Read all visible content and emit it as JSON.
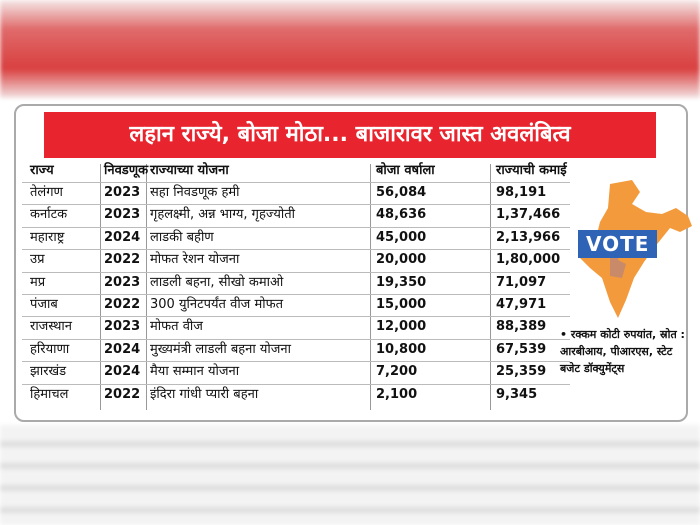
{
  "title": "लहान राज्ये, बोजा मोठा... बाजारावर जास्त अवलंबित्व",
  "table": {
    "header": [
      "राज्य",
      "निवडणूक",
      "राज्याच्या योजना",
      "बोजा वर्षाला",
      "राज्याची कमाई"
    ],
    "rows": [
      [
        "तेलंगण",
        "2023",
        "सहा निवडणूक हमी",
        "56,084",
        "98,191"
      ],
      [
        "कर्नाटक",
        "2023",
        "गृहलक्ष्मी, अन्न भाग्य, गृहज्योती",
        "48,636",
        "1,37,466"
      ],
      [
        "महाराष्ट्र",
        "2024",
        "लाडकी बहीण",
        "45,000",
        "2,13,966"
      ],
      [
        "उप्र",
        "2022",
        "मोफत रेशन योजना",
        "20,000",
        "1,80,000"
      ],
      [
        "मप्र",
        "2023",
        "लाडली बहना, सीखो कमाओ",
        "19,350",
        "71,097"
      ],
      [
        "पंजाब",
        "2022",
        "300 युनिटपर्यंत वीज मोफत",
        "15,000",
        "47,971"
      ],
      [
        "राजस्थान",
        "2023",
        "मोफत वीज",
        "12,000",
        "88,389"
      ],
      [
        "हरियाणा",
        "2024",
        "मुख्यमंत्री लाडली बहना योजना",
        "10,800",
        "67,539"
      ],
      [
        "झारखंड",
        "2024",
        "मैया सम्मान योजना",
        "7,200",
        "25,359"
      ],
      [
        "हिमाचल",
        "2022",
        "इंदिरा गांधी प्यारी बहना",
        "2,100",
        "9,345"
      ]
    ]
  },
  "map_label": "VOTE",
  "note": "• रक्कम कोटी रुपयांत, स्रोत : आरबीआय, पीआरएस, स्टेट बजेट डॉक्युमेंट्स"
}
